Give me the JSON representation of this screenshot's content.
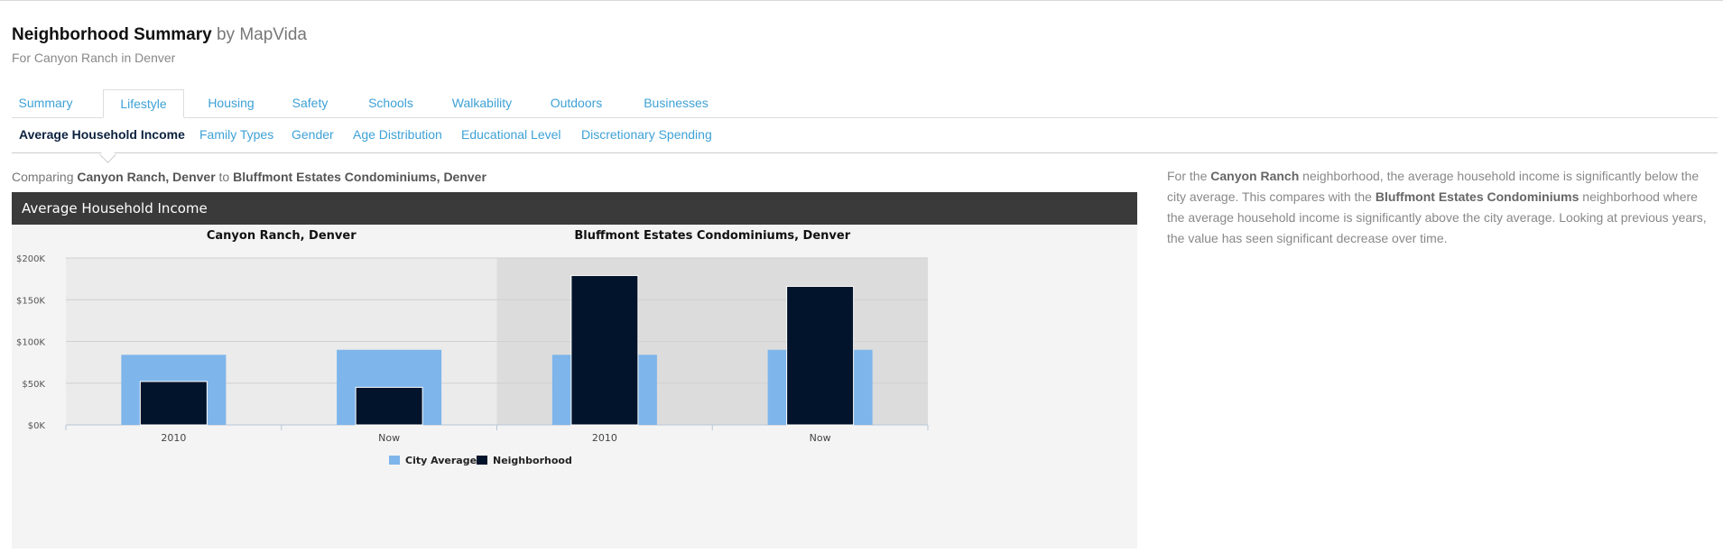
{
  "header": {
    "title": "Neighborhood Summary",
    "by": "by MapVida",
    "subtitle": "For Canyon Ranch in Denver"
  },
  "tabs": [
    {
      "label": "Summary",
      "active": false
    },
    {
      "label": "Lifestyle",
      "active": true
    },
    {
      "label": "Housing",
      "active": false
    },
    {
      "label": "Safety",
      "active": false
    },
    {
      "label": "Schools",
      "active": false
    },
    {
      "label": "Walkability",
      "active": false
    },
    {
      "label": "Outdoors",
      "active": false
    },
    {
      "label": "Businesses",
      "active": false
    }
  ],
  "subtabs": [
    {
      "label": "Average Household Income",
      "active": true
    },
    {
      "label": "Family Types",
      "active": false
    },
    {
      "label": "Gender",
      "active": false
    },
    {
      "label": "Age Distribution",
      "active": false
    },
    {
      "label": "Educational Level",
      "active": false
    },
    {
      "label": "Discretionary Spending",
      "active": false
    }
  ],
  "comparing": {
    "prefix": "Comparing",
    "a": "Canyon Ranch, Denver",
    "mid": "to",
    "b": "Bluffmont Estates Condominiums, Denver"
  },
  "description": {
    "p1": "For the",
    "n1": "Canyon Ranch",
    "p2": "neighborhood, the average household income is significantly below the city average. This compares with the",
    "n2": "Bluffmont Estates Condominiums",
    "p3": "neighborhood where the average household income is significantly above the city average. Looking at previous years, the value has seen significant decrease over time."
  },
  "colors": {
    "city": "#7eb5ea",
    "neighborhood": "#02142b",
    "panelA": "#ebebeb",
    "panelB": "#dcdcdc"
  },
  "chart_data": {
    "type": "bar",
    "title": "Average Household Income",
    "ylim": [
      0,
      200000
    ],
    "yticks": [
      "$0K",
      "$50K",
      "$100K",
      "$150K",
      "$200K"
    ],
    "tick_values": [
      0,
      50000,
      100000,
      150000,
      200000
    ],
    "legend": [
      "City Average",
      "Neighborhood"
    ],
    "legend_position": "bottom",
    "grid": true,
    "panels": [
      {
        "name": "Canyon Ranch, Denver",
        "categories": [
          "2010",
          "Now"
        ],
        "series": [
          {
            "name": "City Average",
            "values": [
              84000,
              90000
            ]
          },
          {
            "name": "Neighborhood",
            "values": [
              52000,
              45000
            ]
          }
        ]
      },
      {
        "name": "Bluffmont Estates Condominiums, Denver",
        "categories": [
          "2010",
          "Now"
        ],
        "series": [
          {
            "name": "City Average",
            "values": [
              84000,
              90000
            ]
          },
          {
            "name": "Neighborhood",
            "values": [
              179000,
              166000
            ]
          }
        ]
      }
    ]
  }
}
